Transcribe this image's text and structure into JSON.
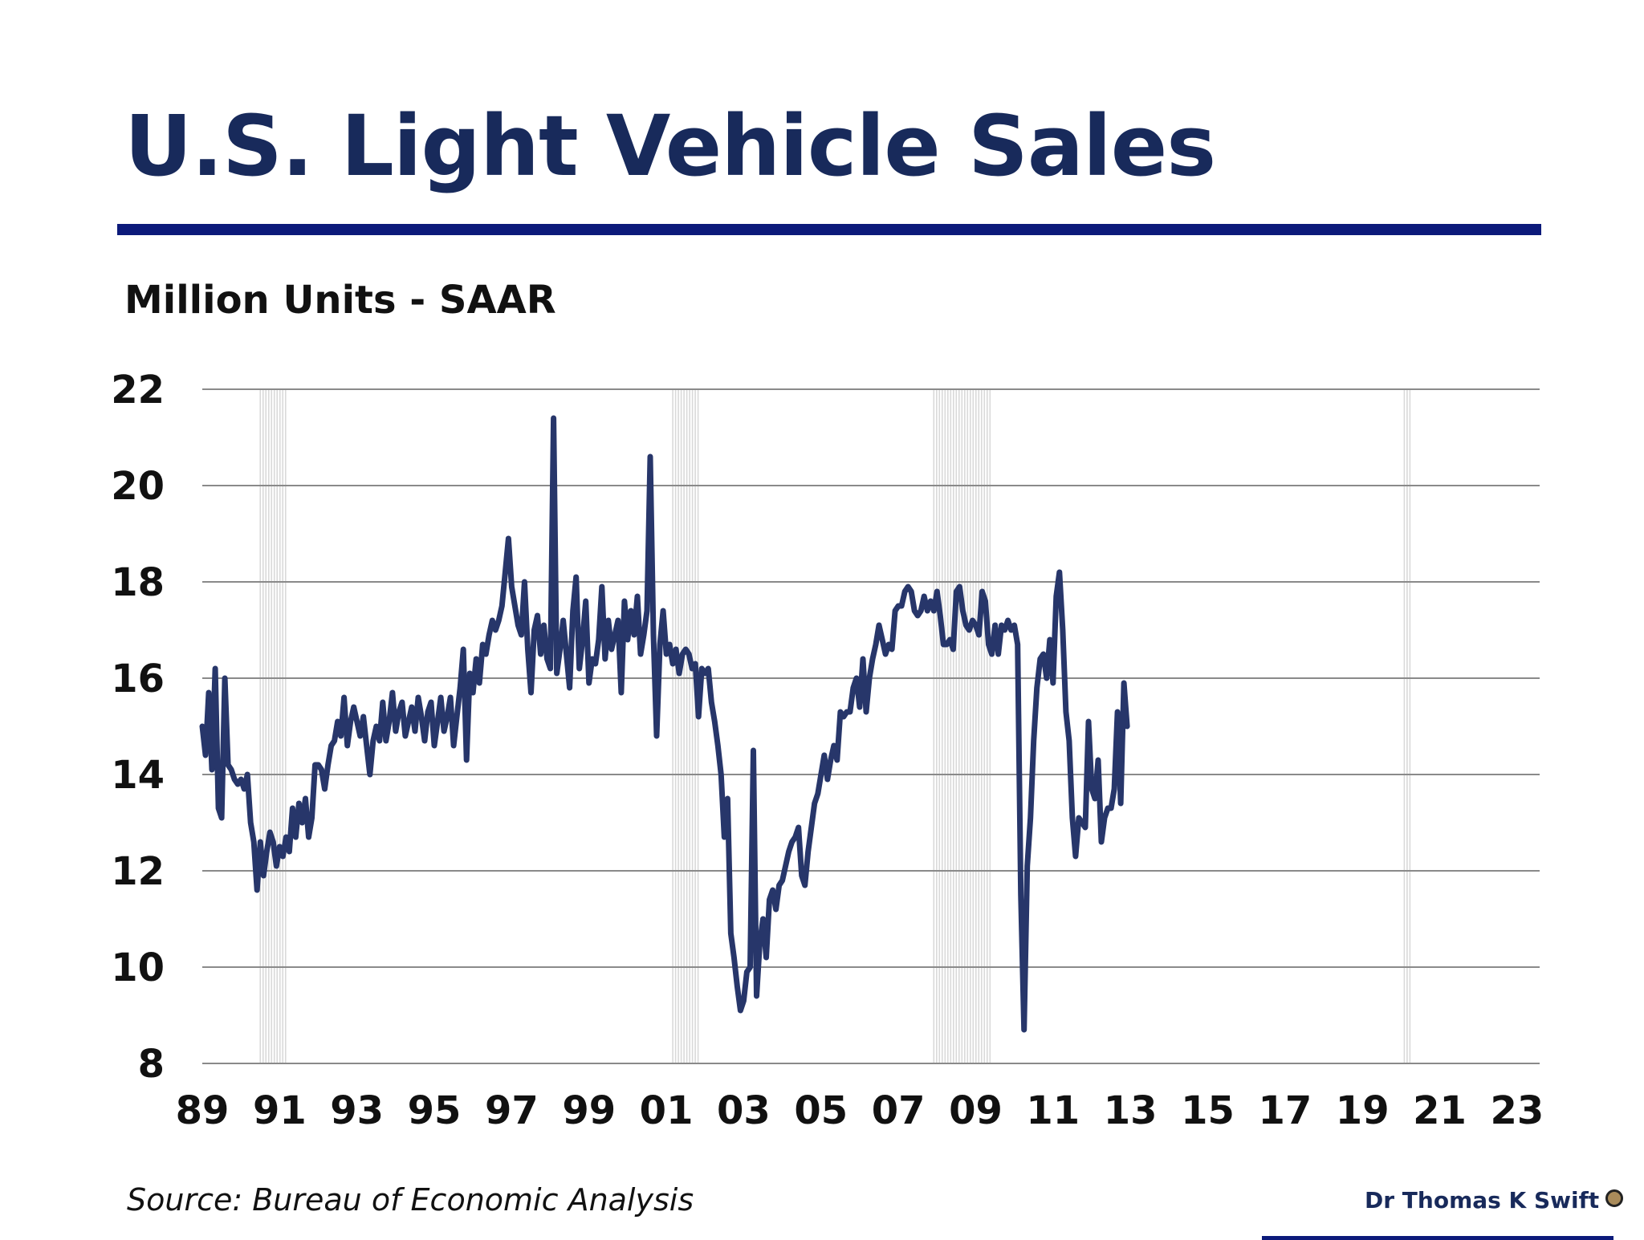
{
  "title": "U.S. Light Vehicle Sales",
  "subtitle": "Million Units - SAAR",
  "source": "Source: Bureau of Economic Analysis",
  "author": "Dr Thomas K Swift",
  "colors": {
    "title": "#182a5b",
    "rule": "#0c1a7a",
    "line": "#27366a",
    "grid": "#8a8a8a",
    "recession": "#d9d9d9"
  },
  "chart_data": {
    "type": "line",
    "title": "U.S. Light Vehicle Sales",
    "ylabel": "Million Units - SAAR",
    "xlabel": "",
    "x_ticks": [
      "89",
      "91",
      "93",
      "95",
      "97",
      "99",
      "01",
      "03",
      "05",
      "07",
      "09",
      "11",
      "13",
      "15",
      "17",
      "19",
      "21",
      "23"
    ],
    "xlim": [
      "1989-01",
      "2023-08"
    ],
    "y_ticks": [
      8,
      10,
      12,
      14,
      16,
      18,
      20,
      22
    ],
    "ylim": [
      8,
      22
    ],
    "grid": "horizontal",
    "legend": "none",
    "recession_shading": [
      {
        "start": "1990-07",
        "end": "1991-03"
      },
      {
        "start": "2001-03",
        "end": "2001-11"
      },
      {
        "start": "2007-12",
        "end": "2009-06"
      },
      {
        "start": "2020-02",
        "end": "2020-04"
      }
    ],
    "series": [
      {
        "frequency": "monthly",
        "start": "1989-01",
        "values": [
          15.0,
          14.4,
          15.7,
          14.1,
          16.2,
          13.3,
          13.1,
          16.0,
          14.2,
          14.1,
          13.9,
          13.8,
          13.9,
          13.7,
          14.0,
          13.0,
          12.6,
          11.6,
          12.6,
          11.9,
          12.4,
          12.8,
          12.6,
          12.1,
          12.5,
          12.3,
          12.7,
          12.4,
          13.3,
          12.7,
          13.4,
          13.0,
          13.5,
          12.7,
          13.1,
          14.2,
          14.2,
          14.1,
          13.7,
          14.2,
          14.6,
          14.7,
          15.1,
          14.8,
          15.6,
          14.6,
          15.1,
          15.4,
          15.1,
          14.8,
          15.2,
          14.6,
          14.0,
          14.7,
          15.0,
          14.7,
          15.5,
          14.7,
          15.1,
          15.7,
          14.9,
          15.3,
          15.5,
          14.8,
          15.1,
          15.4,
          14.9,
          15.6,
          15.2,
          14.7,
          15.3,
          15.5,
          14.6,
          15.1,
          15.6,
          14.9,
          15.2,
          15.6,
          14.6,
          15.2,
          15.8,
          16.6,
          14.3,
          16.1,
          15.7,
          16.4,
          15.9,
          16.7,
          16.5,
          16.9,
          17.2,
          17.0,
          17.2,
          17.5,
          18.2,
          18.9,
          17.9,
          17.5,
          17.1,
          16.9,
          18.0,
          16.6,
          15.7,
          17.0,
          17.3,
          16.5,
          17.1,
          16.4,
          16.2,
          21.4,
          16.1,
          16.6,
          17.2,
          16.5,
          15.8,
          17.4,
          18.1,
          16.2,
          16.8,
          17.6,
          15.9,
          16.4,
          16.3,
          16.8,
          17.9,
          16.4,
          17.2,
          16.6,
          16.9,
          17.2,
          15.7,
          17.6,
          16.8,
          17.4,
          16.9,
          17.7,
          16.5,
          16.9,
          17.4,
          20.6,
          16.9,
          14.8,
          16.7,
          17.4,
          16.5,
          16.7,
          16.3,
          16.6,
          16.1,
          16.5,
          16.6,
          16.5,
          16.2,
          16.3,
          15.2,
          16.2,
          16.1,
          16.2,
          15.5,
          15.1,
          14.6,
          14.0,
          12.7,
          13.5,
          10.7,
          10.2,
          9.6,
          9.1,
          9.3,
          9.9,
          10.0,
          14.5,
          9.4,
          10.5,
          11.0,
          10.2,
          11.4,
          11.6,
          11.2,
          11.7,
          11.8,
          12.1,
          12.4,
          12.6,
          12.7,
          12.9,
          11.9,
          11.7,
          12.4,
          12.9,
          13.4,
          13.6,
          14.0,
          14.4,
          13.9,
          14.3,
          14.6,
          14.3,
          15.3,
          15.2,
          15.3,
          15.3,
          15.8,
          16.0,
          15.4,
          16.4,
          15.3,
          16.0,
          16.4,
          16.7,
          17.1,
          16.8,
          16.5,
          16.7,
          16.6,
          17.4,
          17.5,
          17.5,
          17.8,
          17.9,
          17.8,
          17.4,
          17.3,
          17.4,
          17.7,
          17.4,
          17.6,
          17.4,
          17.8,
          17.3,
          16.7,
          16.7,
          16.8,
          16.6,
          17.8,
          17.9,
          17.4,
          17.1,
          17.0,
          17.2,
          17.1,
          16.9,
          17.8,
          17.6,
          16.7,
          16.5,
          17.1,
          16.5,
          17.1,
          17.0,
          17.2,
          17.0,
          17.1,
          16.7,
          11.5,
          8.7,
          12.1,
          13.1,
          14.7,
          15.8,
          16.4,
          16.5,
          16.0,
          16.8,
          15.9,
          17.7,
          18.2,
          17.0,
          15.3,
          14.7,
          13.1,
          12.3,
          13.1,
          13.0,
          12.9,
          15.1,
          13.7,
          13.5,
          14.3,
          12.6,
          13.1,
          13.3,
          13.3,
          13.7,
          15.3,
          13.4,
          15.9,
          15.0
        ]
      }
    ]
  }
}
